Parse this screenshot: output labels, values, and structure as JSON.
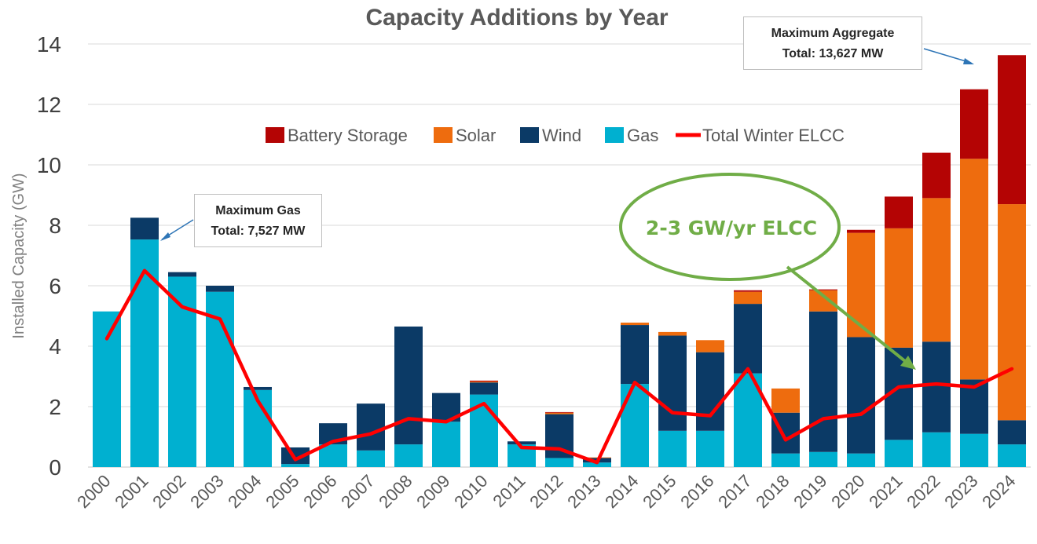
{
  "chart_data": {
    "type": "bar",
    "stacked": true,
    "title": "Capacity Additions by Year",
    "xlabel": "",
    "ylabel": "Installed Capacity (GW)",
    "ylim": [
      0,
      14
    ],
    "yticks": [
      0,
      2,
      4,
      6,
      8,
      10,
      12,
      14
    ],
    "grid": true,
    "legend_position": "top-center",
    "categories": [
      "2000",
      "2001",
      "2002",
      "2003",
      "2004",
      "2005",
      "2006",
      "2007",
      "2008",
      "2009",
      "2010",
      "2011",
      "2012",
      "2013",
      "2014",
      "2015",
      "2016",
      "2017",
      "2018",
      "2019",
      "2020",
      "2021",
      "2022",
      "2023",
      "2024"
    ],
    "series": [
      {
        "name": "Gas",
        "color": "#00b0d0",
        "values": [
          5.15,
          7.53,
          6.3,
          5.8,
          2.55,
          0.1,
          0.75,
          0.55,
          0.75,
          1.5,
          2.4,
          0.75,
          0.3,
          0.15,
          2.75,
          1.2,
          1.2,
          3.1,
          0.45,
          0.5,
          0.45,
          0.9,
          1.15,
          1.1,
          0.75
        ]
      },
      {
        "name": "Wind",
        "color": "#0b3a66",
        "values": [
          0,
          0.72,
          0.15,
          0.2,
          0.1,
          0.55,
          0.7,
          1.55,
          3.9,
          0.95,
          0.4,
          0.1,
          1.45,
          0.15,
          1.95,
          3.15,
          2.6,
          2.3,
          1.35,
          4.65,
          3.85,
          3.05,
          3.0,
          1.8,
          0.8
        ]
      },
      {
        "name": "Solar",
        "color": "#ee6c0e",
        "values": [
          0,
          0,
          0,
          0,
          0,
          0,
          0,
          0,
          0,
          0,
          0.03,
          0,
          0.05,
          0.02,
          0.08,
          0.12,
          0.4,
          0.4,
          0.8,
          0.7,
          3.45,
          3.95,
          4.75,
          7.3,
          7.15
        ]
      },
      {
        "name": "Battery Storage",
        "color": "#b40404",
        "values": [
          0,
          0,
          0,
          0,
          0,
          0,
          0,
          0,
          0,
          0,
          0.03,
          0,
          0.02,
          0,
          0,
          0,
          0,
          0.05,
          0,
          0.03,
          0.1,
          1.05,
          1.5,
          2.3,
          4.93
        ]
      }
    ],
    "line_series": {
      "name": "Total Winter ELCC",
      "color": "#ff0000",
      "values": [
        4.25,
        6.5,
        5.3,
        4.9,
        2.2,
        0.25,
        0.85,
        1.1,
        1.6,
        1.5,
        2.1,
        0.65,
        0.6,
        0.15,
        2.8,
        1.8,
        1.7,
        3.25,
        0.9,
        1.6,
        1.75,
        2.65,
        2.75,
        2.65,
        3.25
      ]
    },
    "legend": [
      "Battery Storage",
      "Solar",
      "Wind",
      "Gas",
      "Total Winter ELCC"
    ],
    "annotations": {
      "max_gas": {
        "line1": "Maximum Gas",
        "line2": "Total: 7,527 MW",
        "year": "2001"
      },
      "max_aggregate": {
        "line1": "Maximum Aggregate",
        "line2": "Total: 13,627 MW",
        "year": "2024"
      },
      "elcc_note": {
        "text": "2-3 GW/yr ELCC",
        "year": "2021"
      }
    }
  }
}
